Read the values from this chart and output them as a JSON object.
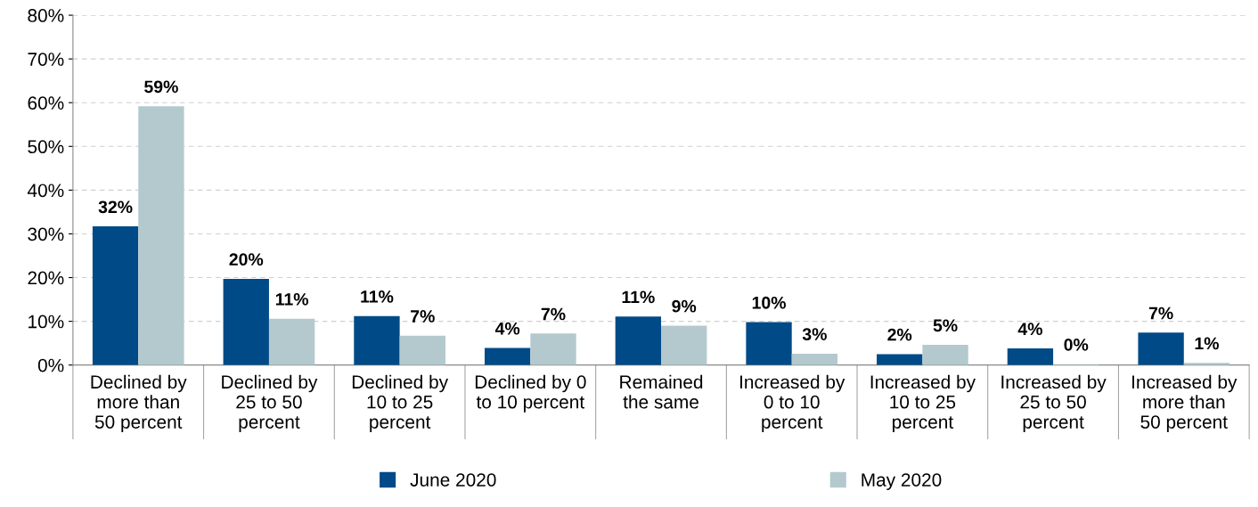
{
  "chart_data": {
    "type": "bar",
    "categories": [
      "Declined by\nmore than\n50 percent",
      "Declined by\n25 to 50\npercent",
      "Declined by\n10 to 25\npercent",
      "Declined by 0\nto 10 percent",
      "Remained\nthe same",
      "Increased by\n0 to 10\npercent",
      "Increased by\n10 to 25\npercent",
      "Increased by\n25 to 50\npercent",
      "Increased by\nmore than\n50 percent"
    ],
    "series": [
      {
        "name": "June 2020",
        "color": "#004a87",
        "values": [
          31.7,
          19.7,
          11.2,
          3.9,
          11.1,
          9.8,
          2.5,
          3.8,
          7.4
        ],
        "value_labels": [
          "32%",
          "20%",
          "11%",
          "4%",
          "11%",
          "10%",
          "2%",
          "4%",
          "7%"
        ]
      },
      {
        "name": "May 2020",
        "color": "#b4c9ce",
        "values": [
          59.2,
          10.6,
          6.7,
          7.2,
          9.0,
          2.6,
          4.6,
          0.2,
          0.5
        ],
        "value_labels": [
          "59%",
          "11%",
          "7%",
          "7%",
          "9%",
          "3%",
          "5%",
          "0%",
          "1%"
        ]
      }
    ],
    "ylim": [
      0,
      80
    ],
    "yticks": [
      {
        "value": 0,
        "label": "0%"
      },
      {
        "value": 10,
        "label": "10%"
      },
      {
        "value": 20,
        "label": "20%"
      },
      {
        "value": 30,
        "label": "30%"
      },
      {
        "value": 40,
        "label": "40%"
      },
      {
        "value": 50,
        "label": "50%"
      },
      {
        "value": 60,
        "label": "60%"
      },
      {
        "value": 70,
        "label": "70%"
      },
      {
        "value": 80,
        "label": "80%"
      }
    ],
    "grid": "y",
    "legend": "bottom"
  }
}
